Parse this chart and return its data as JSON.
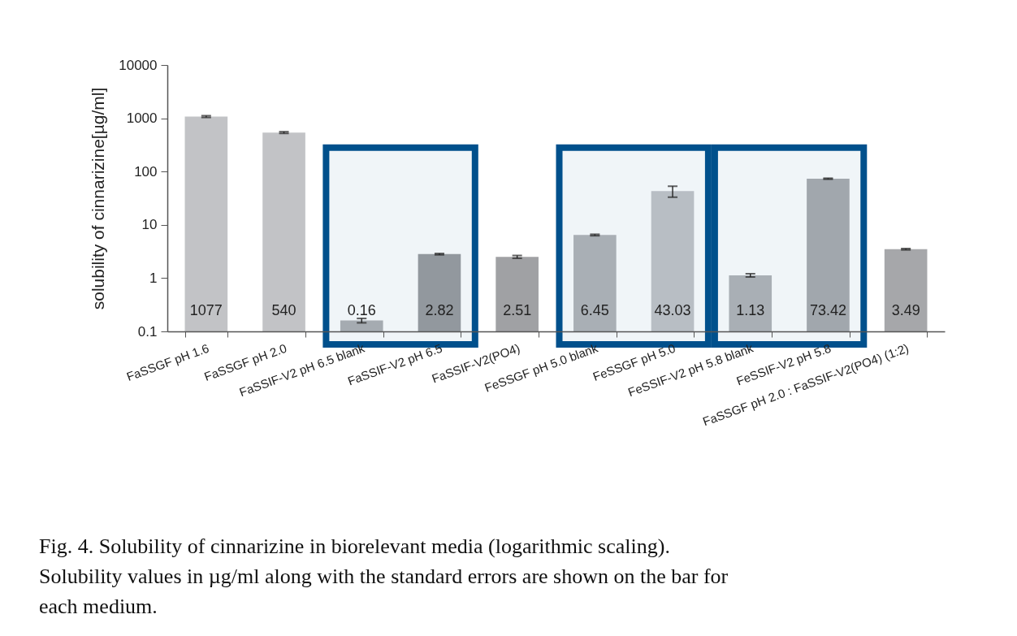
{
  "chart_data": {
    "type": "bar",
    "ylabel": "solubility of cinnarizine[µg/ml]",
    "categories": [
      "FaSSGF pH 1.6",
      "FaSSGF pH 2.0",
      "FaSSIF-V2 pH 6.5 blank",
      "FaSSIF-V2 pH 6.5",
      "FaSSIF-V2(PO4)",
      "FeSSGF pH 5.0 blank",
      "FeSSGF pH 5.0",
      "FeSSIF-V2 pH 5.8 blank",
      "FeSSIF-V2 pH 5.8",
      "FaSSGF pH 2.0 : FaSSIF-V2(PO4) (1:2)"
    ],
    "values": [
      1077,
      540,
      0.16,
      2.82,
      2.51,
      6.45,
      43.03,
      1.13,
      73.42,
      3.49
    ],
    "errors": [
      40,
      20,
      0.015,
      0.08,
      0.15,
      0.2,
      10,
      0.08,
      1.5,
      0.1
    ],
    "colors": [
      "#c2c3c6",
      "#c2c3c6",
      "#b0b1b4",
      "#9c9da0",
      "#a0a1a4",
      "#b4b5b8",
      "#c4c5c8",
      "#b4b5b8",
      "#acadb0",
      "#a6a7aa"
    ],
    "log": true,
    "ylim": [
      0.1,
      10000
    ],
    "yticks": [
      0.1,
      1,
      10,
      100,
      1000,
      10000
    ],
    "grid": false,
    "data_labels": true,
    "bands": [
      {
        "axis": "x",
        "from": "FaSSIF-V2 pH 6.5 blank",
        "to": "FaSSIF-V2 pH 6.5",
        "color": "#00508c"
      },
      {
        "axis": "x",
        "from": "FeSSGF pH 5.0 blank",
        "to": "FeSSGF pH 5.0",
        "color": "#00508c"
      },
      {
        "axis": "x",
        "from": "FeSSIF-V2 pH 5.8 blank",
        "to": "FeSSIF-V2 pH 5.8",
        "color": "#00508c"
      }
    ],
    "annotations": [
      "Fig. 4. Solubility of cinnarizine in biorelevant media (logarithmic scaling). Solubility values in µg/ml along with the standard errors are shown on the bar for each medium."
    ]
  }
}
